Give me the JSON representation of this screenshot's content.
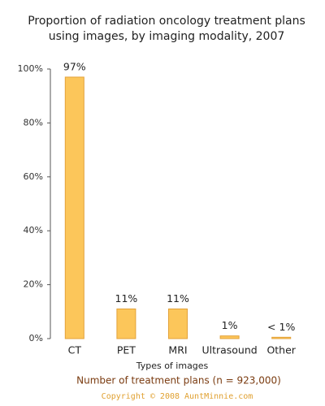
{
  "chart_data": {
    "type": "bar",
    "title": [
      "Proportion of radiation oncology treatment plans",
      "using images, by imaging modality, 2007"
    ],
    "categories": [
      "CT",
      "PET",
      "MRI",
      "Ultrasound",
      "Other"
    ],
    "values": [
      97,
      11,
      11,
      1,
      0.5
    ],
    "value_labels": [
      "97%",
      "11%",
      "11%",
      "1%",
      "< 1%"
    ],
    "color": "#fcc65a",
    "ylim": [
      0,
      100
    ],
    "yticks": [
      {
        "value": 0,
        "label": "0%"
      },
      {
        "value": 20,
        "label": "20%"
      },
      {
        "value": 40,
        "label": "40%"
      },
      {
        "value": 60,
        "label": "60%"
      },
      {
        "value": 80,
        "label": "80%"
      },
      {
        "value": 100,
        "label": "100%"
      }
    ],
    "x_label": "Types of images",
    "note": "Number of treatment plans (n = 923,000)",
    "copyright": "Copyright © 2008 AuntMinnie.com"
  }
}
